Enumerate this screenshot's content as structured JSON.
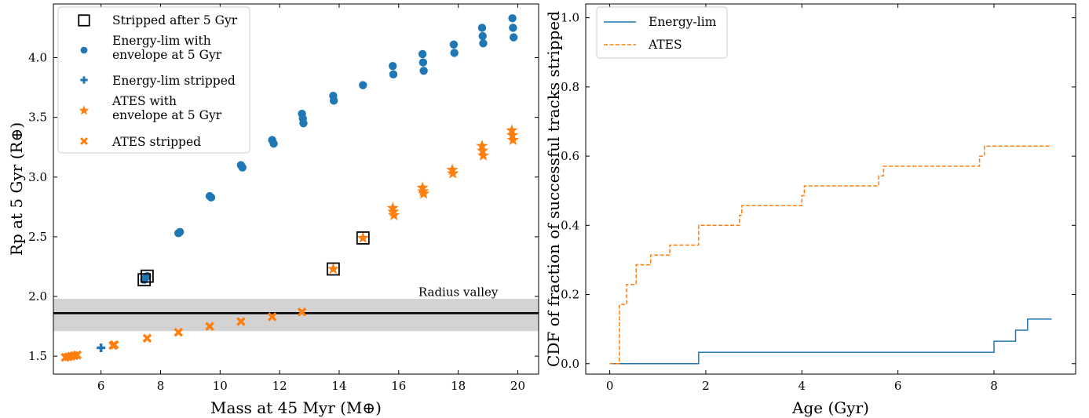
{
  "charts": [
    {
      "type": "scatter",
      "xlabel": "Mass at 45 Myr (M⊕)",
      "ylabel": "Rp at 5 Gyr (R⊕)",
      "xlim": [
        4.4,
        20.7
      ],
      "ylim": [
        1.35,
        4.45
      ],
      "xticks": [
        6,
        8,
        10,
        12,
        14,
        16,
        18,
        20
      ],
      "xtick_labels": [
        "6",
        "8",
        "10",
        "12",
        "14",
        "16",
        "18",
        "20"
      ],
      "yticks": [
        1.5,
        2.0,
        2.5,
        3.0,
        3.5,
        4.0
      ],
      "ytick_labels": [
        "1.5",
        "2.0",
        "2.5",
        "3.0",
        "3.5",
        "4.0"
      ],
      "legend_position": "top-left",
      "legend": [
        "Stripped after 5 Gyr",
        "Energy-lim with\nenvelope at 5 Gyr",
        "Energy-lim stripped",
        "ATES with\nenvelope at 5 Gyr",
        "ATES stripped"
      ],
      "annotation": {
        "text": "Radius valley",
        "x": 18.0,
        "y": 2.03
      },
      "radius_valley": {
        "line": 1.86,
        "band": [
          1.71,
          1.98
        ]
      },
      "series": [
        {
          "name": "Energy-lim with\nenvelope at 5 Gyr",
          "marker": "circle",
          "color": "#1f77b4",
          "points": [
            [
              7.45,
              2.14
            ],
            [
              7.5,
              2.16
            ],
            [
              7.55,
              2.17
            ],
            [
              8.6,
              2.53
            ],
            [
              8.65,
              2.54
            ],
            [
              9.65,
              2.84
            ],
            [
              9.7,
              2.83
            ],
            [
              10.7,
              3.1
            ],
            [
              10.75,
              3.08
            ],
            [
              11.75,
              3.31
            ],
            [
              11.8,
              3.28
            ],
            [
              12.75,
              3.53
            ],
            [
              12.78,
              3.49
            ],
            [
              12.8,
              3.45
            ],
            [
              13.8,
              3.68
            ],
            [
              13.82,
              3.64
            ],
            [
              14.8,
              3.77
            ],
            [
              15.8,
              3.93
            ],
            [
              15.82,
              3.86
            ],
            [
              16.8,
              4.03
            ],
            [
              16.82,
              3.96
            ],
            [
              16.84,
              3.89
            ],
            [
              17.85,
              4.11
            ],
            [
              17.87,
              4.04
            ],
            [
              18.8,
              4.25
            ],
            [
              18.82,
              4.18
            ],
            [
              18.84,
              4.12
            ],
            [
              19.82,
              4.33
            ],
            [
              19.84,
              4.25
            ],
            [
              19.86,
              4.17
            ]
          ]
        },
        {
          "name": "Energy-lim stripped",
          "marker": "plus",
          "color": "#1f77b4",
          "points": [
            [
              6.0,
              1.57
            ]
          ]
        },
        {
          "name": "ATES with\nenvelope at 5 Gyr",
          "marker": "star",
          "color": "#ff7f0e",
          "points": [
            [
              13.8,
              2.23
            ],
            [
              14.8,
              2.49
            ],
            [
              15.8,
              2.74
            ],
            [
              15.82,
              2.71
            ],
            [
              15.84,
              2.68
            ],
            [
              16.8,
              2.91
            ],
            [
              16.82,
              2.88
            ],
            [
              16.84,
              2.86
            ],
            [
              17.8,
              3.06
            ],
            [
              17.82,
              3.03
            ],
            [
              18.8,
              3.26
            ],
            [
              18.82,
              3.22
            ],
            [
              18.84,
              3.18
            ],
            [
              19.8,
              3.39
            ],
            [
              19.82,
              3.35
            ],
            [
              19.84,
              3.31
            ]
          ]
        },
        {
          "name": "ATES stripped",
          "marker": "x",
          "color": "#ff7f0e",
          "points": [
            [
              4.8,
              1.49
            ],
            [
              4.9,
              1.495
            ],
            [
              5.0,
              1.5
            ],
            [
              5.1,
              1.505
            ],
            [
              5.2,
              1.51
            ],
            [
              6.4,
              1.59
            ],
            [
              6.45,
              1.595
            ],
            [
              7.55,
              1.65
            ],
            [
              8.6,
              1.7
            ],
            [
              9.65,
              1.75
            ],
            [
              10.7,
              1.79
            ],
            [
              11.75,
              1.83
            ],
            [
              12.75,
              1.87
            ]
          ]
        },
        {
          "name": "Stripped after 5 Gyr",
          "marker": "square",
          "color": "#000000",
          "points": [
            [
              7.45,
              2.14
            ],
            [
              7.55,
              2.17
            ],
            [
              13.8,
              2.23
            ],
            [
              14.8,
              2.49
            ]
          ]
        }
      ]
    },
    {
      "type": "line",
      "xlabel": "Age (Gyr)",
      "ylabel": "CDF of fraction of successful tracks stripped",
      "xlim": [
        -0.5,
        9.7
      ],
      "ylim": [
        -0.03,
        1.04
      ],
      "xticks": [
        0,
        2,
        4,
        6,
        8
      ],
      "xtick_labels": [
        "0",
        "2",
        "4",
        "6",
        "8"
      ],
      "yticks": [
        0.0,
        0.2,
        0.4,
        0.6,
        0.8,
        1.0
      ],
      "ytick_labels": [
        "0.0",
        "0.2",
        "0.4",
        "0.6",
        "0.8",
        "1.0"
      ],
      "legend_position": "top-left",
      "legend": [
        "Energy-lim",
        "ATES"
      ],
      "series": [
        {
          "name": "Energy-lim",
          "color": "#1f77b4",
          "style": "solid",
          "x": [
            0,
            1.85,
            1.85,
            8.0,
            8.0,
            8.45,
            8.45,
            8.7,
            8.7,
            9.2
          ],
          "y": [
            0,
            0,
            0.033,
            0.033,
            0.065,
            0.065,
            0.097,
            0.097,
            0.129,
            0.129
          ]
        },
        {
          "name": "ATES",
          "color": "#ff7f0e",
          "style": "dashed",
          "x": [
            0,
            0.2,
            0.2,
            0.35,
            0.35,
            0.55,
            0.55,
            0.85,
            0.85,
            1.25,
            1.25,
            1.85,
            1.85,
            2.7,
            2.7,
            2.75,
            2.75,
            4.0,
            4.0,
            4.05,
            4.05,
            5.6,
            5.6,
            5.7,
            5.7,
            7.7,
            7.7,
            7.8,
            7.8,
            9.2
          ],
          "y": [
            0,
            0,
            0.171,
            0.171,
            0.229,
            0.229,
            0.286,
            0.286,
            0.314,
            0.314,
            0.343,
            0.343,
            0.4,
            0.4,
            0.429,
            0.429,
            0.457,
            0.457,
            0.486,
            0.486,
            0.514,
            0.514,
            0.543,
            0.543,
            0.571,
            0.571,
            0.6,
            0.6,
            0.629,
            0.629
          ]
        }
      ]
    }
  ]
}
